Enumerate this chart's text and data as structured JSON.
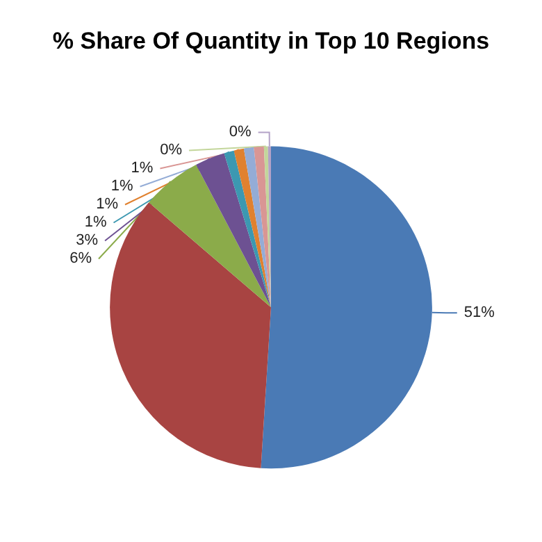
{
  "chart_data": {
    "type": "pie",
    "title": "% Share Of Quantity in Top 10 Regions",
    "categories": [
      null,
      null,
      null,
      null,
      null,
      null,
      null,
      null,
      null,
      null
    ],
    "values": [
      51,
      35.3,
      6,
      3,
      1,
      1,
      1,
      1,
      0.4,
      0.3
    ],
    "value_labels": [
      "51%",
      null,
      "6%",
      "3%",
      "1%",
      "1%",
      "1%",
      "1%",
      "0%",
      "0%"
    ],
    "colors": [
      "#4a7ab5",
      "#a84442",
      "#8bab4a",
      "#6d5192",
      "#3c98b1",
      "#e0812f",
      "#94acd6",
      "#d99694",
      "#c3d69b",
      "#b3a2c7"
    ]
  }
}
